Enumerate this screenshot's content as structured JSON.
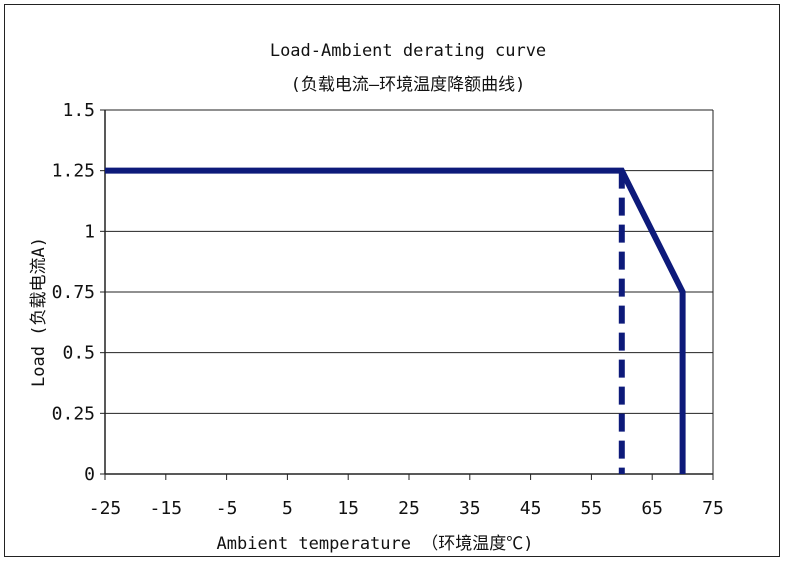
{
  "chart_data": {
    "type": "line",
    "title": "Load-Ambient derating curve",
    "subtitle": "(负载电流—环境温度降额曲线)",
    "xlabel": "Ambient temperature （环境温度℃)",
    "ylabel": "Load (负载电流A)",
    "xlim": [
      -25,
      75
    ],
    "ylim": [
      0,
      1.5
    ],
    "x_ticks": [
      -25,
      -15,
      -5,
      5,
      15,
      25,
      35,
      45,
      55,
      65,
      75
    ],
    "x_tick_labels": [
      "-25",
      "-15",
      "-5",
      "5",
      "15",
      "25",
      "35",
      "45",
      "55",
      "65",
      "75"
    ],
    "y_ticks": [
      0,
      0.25,
      0.5,
      0.75,
      1,
      1.25,
      1.5
    ],
    "y_tick_labels": [
      "0",
      "0.25",
      "0.5",
      "0.75",
      "1",
      "1.25",
      "1.5"
    ],
    "grid": "horizontal",
    "series": [
      {
        "style": "solid",
        "color": "#0d1a7a",
        "x": [
          -25,
          60,
          70,
          70
        ],
        "y": [
          1.25,
          1.25,
          0.75,
          0
        ]
      },
      {
        "style": "dashed",
        "color": "#0d1a7a",
        "x": [
          60,
          60
        ],
        "y": [
          1.25,
          0
        ]
      }
    ]
  }
}
